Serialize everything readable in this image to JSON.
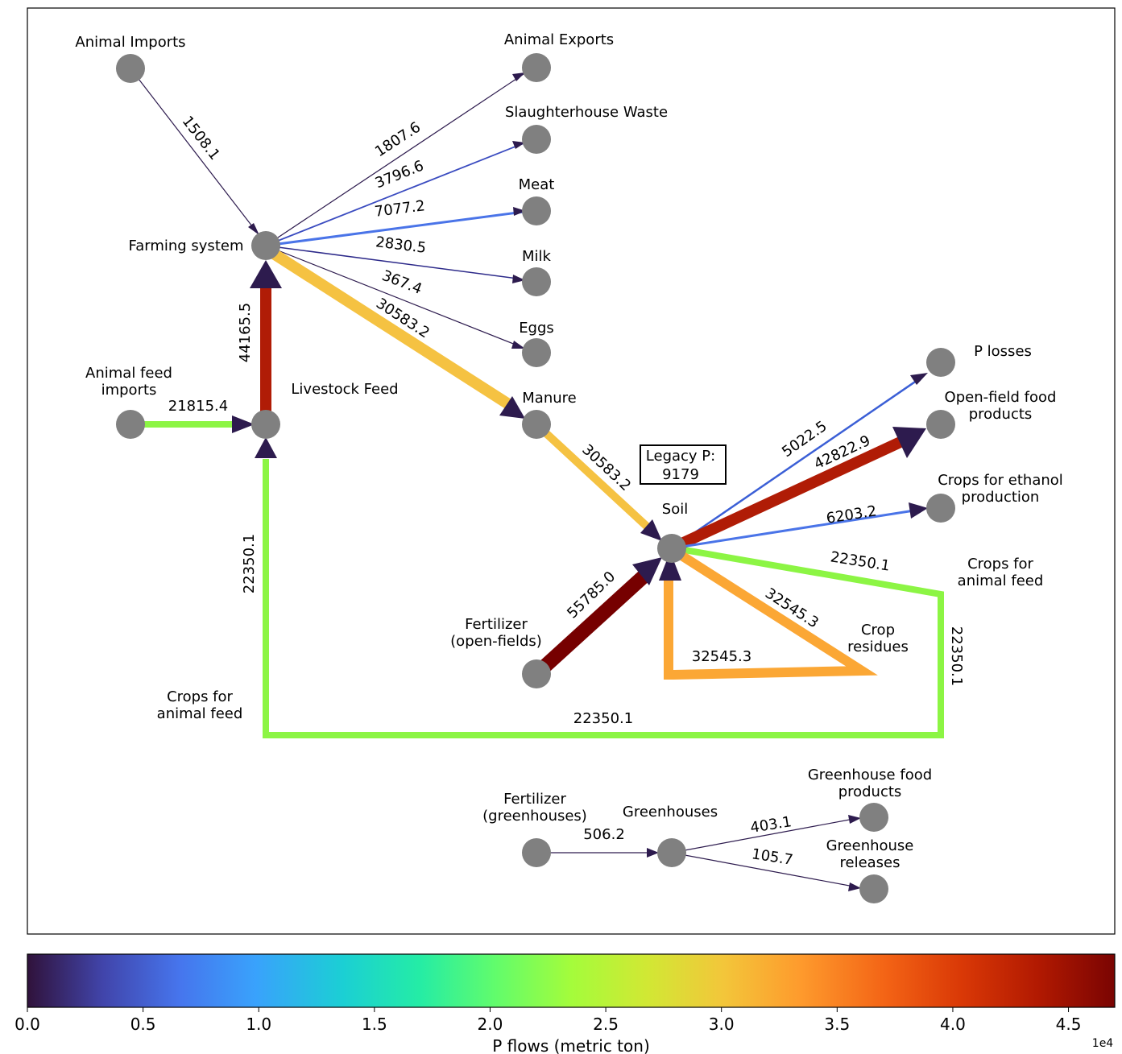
{
  "nodes": [
    {
      "id": "animal_imports",
      "label": "Animal Imports"
    },
    {
      "id": "animal_exports",
      "label": "Animal Exports"
    },
    {
      "id": "slaughterhouse_waste",
      "label": "Slaughterhouse Waste"
    },
    {
      "id": "meat",
      "label": "Meat"
    },
    {
      "id": "milk",
      "label": "Milk"
    },
    {
      "id": "eggs",
      "label": "Eggs"
    },
    {
      "id": "farming_system",
      "label": "Farming system"
    },
    {
      "id": "animal_feed_imports",
      "label": "Animal feed\nimports"
    },
    {
      "id": "livestock_feed",
      "label": "Livestock Feed"
    },
    {
      "id": "manure",
      "label": "Manure"
    },
    {
      "id": "soil",
      "label": "Soil"
    },
    {
      "id": "p_losses",
      "label": "P losses"
    },
    {
      "id": "open_field_food",
      "label": "Open-field food\nproducts"
    },
    {
      "id": "crops_ethanol",
      "label": "Crops for ethanol\nproduction"
    },
    {
      "id": "crops_feed_right",
      "label": "Crops for\nanimal feed"
    },
    {
      "id": "crop_residues",
      "label": "Crop\nresidues"
    },
    {
      "id": "fertilizer_open",
      "label": "Fertilizer\n(open-fields)"
    },
    {
      "id": "crops_feed_left",
      "label": "Crops for\nanimal feed"
    },
    {
      "id": "fertilizer_gh",
      "label": "Fertilizer\n(greenhouses)"
    },
    {
      "id": "greenhouses",
      "label": "Greenhouses"
    },
    {
      "id": "gh_food",
      "label": "Greenhouse food\nproducts"
    },
    {
      "id": "gh_releases",
      "label": "Greenhouse\nreleases"
    }
  ],
  "flows": [
    {
      "from": "animal_imports",
      "to": "farming_system",
      "value": 1508.1,
      "label": "1508.1"
    },
    {
      "from": "farming_system",
      "to": "animal_exports",
      "value": 1807.6,
      "label": "1807.6"
    },
    {
      "from": "farming_system",
      "to": "slaughterhouse_waste",
      "value": 3796.6,
      "label": "3796.6"
    },
    {
      "from": "farming_system",
      "to": "meat",
      "value": 7077.2,
      "label": "7077.2"
    },
    {
      "from": "farming_system",
      "to": "milk",
      "value": 2830.5,
      "label": "2830.5"
    },
    {
      "from": "farming_system",
      "to": "eggs",
      "value": 367.4,
      "label": "367.4"
    },
    {
      "from": "farming_system",
      "to": "manure",
      "value": 30583.2,
      "label": "30583.2"
    },
    {
      "from": "livestock_feed",
      "to": "farming_system",
      "value": 44165.5,
      "label": "44165.5"
    },
    {
      "from": "animal_feed_imports",
      "to": "livestock_feed",
      "value": 21815.4,
      "label": "21815.4"
    },
    {
      "from": "manure",
      "to": "soil",
      "value": 30583.2,
      "label": "30583.2"
    },
    {
      "from": "soil",
      "to": "p_losses",
      "value": 5022.5,
      "label": "5022.5"
    },
    {
      "from": "soil",
      "to": "open_field_food",
      "value": 42822.9,
      "label": "42822.9"
    },
    {
      "from": "soil",
      "to": "crops_ethanol",
      "value": 6203.2,
      "label": "6203.2"
    },
    {
      "from": "soil",
      "to": "crops_feed_right",
      "value": 22350.1,
      "label": "22350.1"
    },
    {
      "from": "soil",
      "to": "crop_residues",
      "value": 32545.3,
      "label": "32545.3"
    },
    {
      "from": "crop_residues",
      "to": "soil",
      "value": 32545.3,
      "label": "32545.3"
    },
    {
      "from": "fertilizer_open",
      "to": "soil",
      "value": 55785.0,
      "label": "55785.0"
    },
    {
      "from": "crops_feed_right",
      "to": "crops_feed_left",
      "value": 22350.1,
      "label": "22350.1"
    },
    {
      "from": "crops_feed_right",
      "to": "crops_feed_left",
      "value": 22350.1,
      "label": "22350.1"
    },
    {
      "from": "crops_feed_left",
      "to": "livestock_feed",
      "value": 22350.1,
      "label": "22350.1"
    },
    {
      "from": "fertilizer_gh",
      "to": "greenhouses",
      "value": 506.2,
      "label": "506.2"
    },
    {
      "from": "greenhouses",
      "to": "gh_food",
      "value": 403.1,
      "label": "403.1"
    },
    {
      "from": "greenhouses",
      "to": "gh_releases",
      "value": 105.7,
      "label": "105.7"
    }
  ],
  "legacy_box": {
    "line1": "Legacy P:",
    "line2": "9179"
  },
  "colorbar": {
    "title": "P flows (metric ton)",
    "ticks": [
      "0.0",
      "0.5",
      "1.0",
      "1.5",
      "2.0",
      "2.5",
      "3.0",
      "3.5",
      "4.0",
      "4.5"
    ],
    "exponent": "1e4",
    "range": [
      0,
      47000
    ],
    "colormap": "turbo"
  },
  "colors": {
    "node": "#808080",
    "arrow_head": "#2d1b4e",
    "flow_tiny": "#2d1b4e",
    "flow_low": "#3b4cc0",
    "flow_mid_low": "#4a74e8",
    "flow_green": "#8cf544",
    "flow_orange_light": "#f5c242",
    "flow_orange": "#fba735",
    "flow_red": "#b01c06",
    "flow_dark_red": "#8a1205",
    "flow_darkest": "#760000"
  }
}
